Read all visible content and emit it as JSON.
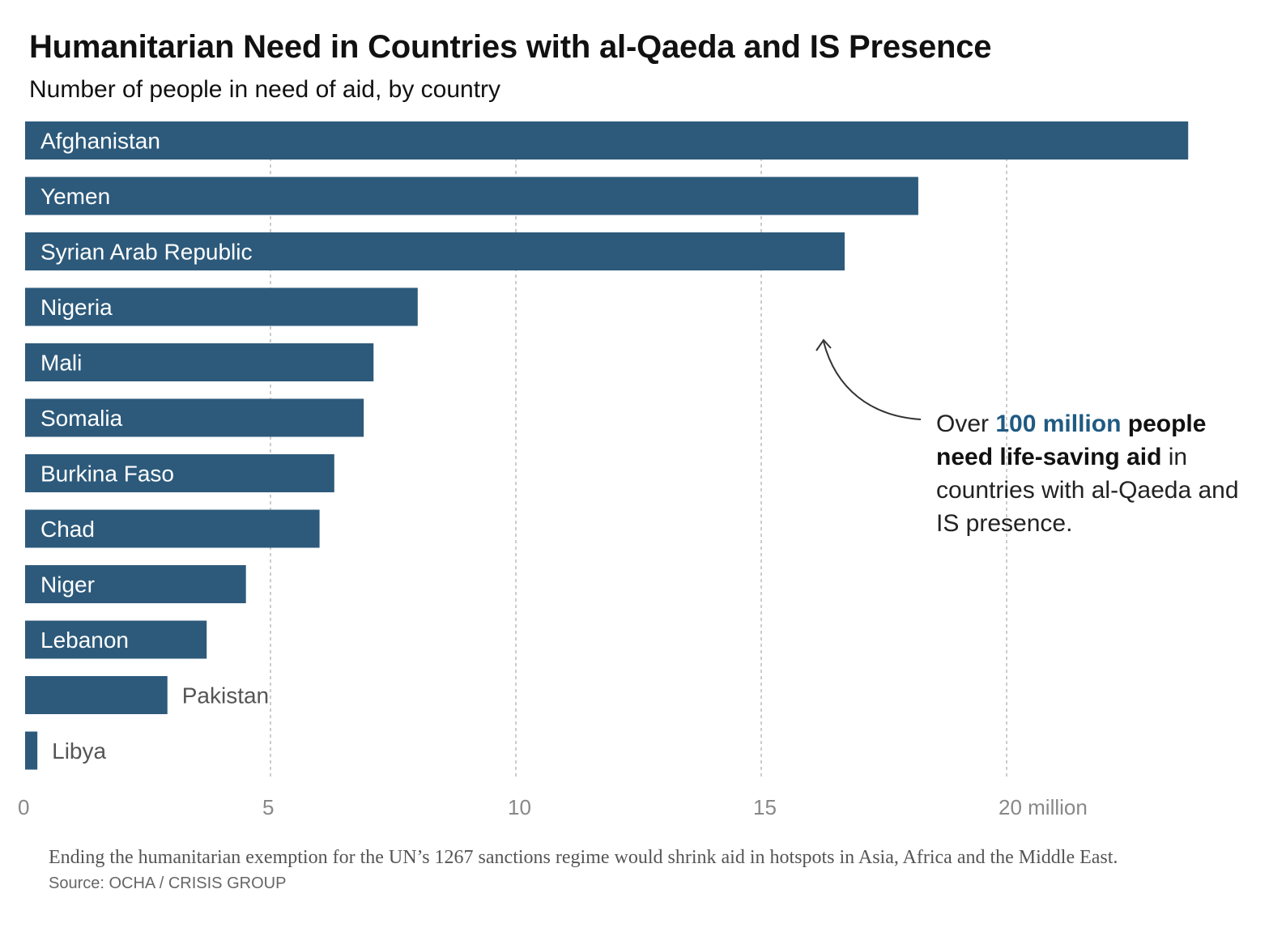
{
  "chart_data": {
    "type": "bar",
    "orientation": "horizontal",
    "title": "Humanitarian Need in Countries with al-Qaeda and IS Presence",
    "subtitle": "Number of people in need of aid, by country",
    "categories": [
      "Afghanistan",
      "Yemen",
      "Syrian Arab Republic",
      "Nigeria",
      "Mali",
      "Somalia",
      "Burkina Faso",
      "Chad",
      "Niger",
      "Lebanon",
      "Pakistan",
      "Libya"
    ],
    "values": [
      23.7,
      18.2,
      16.7,
      8.0,
      7.1,
      6.9,
      6.3,
      6.0,
      4.5,
      3.7,
      2.9,
      0.25
    ],
    "unit": "million",
    "xlim": [
      0,
      24
    ],
    "x_ticks": [
      0,
      5,
      10,
      15,
      20
    ],
    "x_tick_labels": [
      "0",
      "5",
      "10",
      "15",
      "20 million"
    ],
    "grid": true,
    "colors": {
      "bar": "#2d5a7b",
      "bar_label": "#ffffff",
      "outside_label": "#555555",
      "grid": "#bbbbbb",
      "tick_label": "#888888",
      "highlight": "#1f5a82"
    },
    "annotation": {
      "parts": [
        {
          "text": "Over ",
          "style": "normal"
        },
        {
          "text": "100 million",
          "style": "highlight"
        },
        {
          "text": " people need life-saving aid",
          "style": "bold"
        },
        {
          "text": " in countries with al-Qaeda and IS presence.",
          "style": "normal"
        }
      ]
    }
  },
  "caption": "Ending the humanitarian exemption for the UN’s 1267 sanctions regime would shrink aid in hotspots in Asia, Africa and the Middle East.",
  "source": "Source: OCHA / CRISIS GROUP"
}
